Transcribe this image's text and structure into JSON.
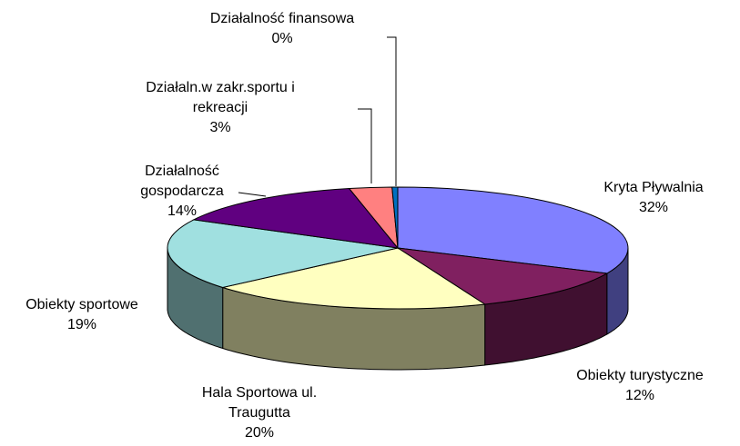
{
  "chart_data": {
    "type": "pie3d",
    "categories": [
      "Kryta Pływalnia",
      "Obiekty turystyczne",
      "Hala Sportowa ul. Traugutta",
      "Obiekty sportowe",
      "Działalność gospodarcza",
      "Działaln.w zakr.sportu i rekreacji",
      "Działalność finansowa"
    ],
    "values": [
      32,
      12,
      20,
      19,
      14,
      3,
      0.4
    ],
    "value_labels": [
      "32%",
      "12%",
      "20%",
      "19%",
      "14%",
      "3%",
      "0%"
    ],
    "colors": [
      "#8080ff",
      "#802060",
      "#ffffc0",
      "#a0e0e0",
      "#600080",
      "#ff8080",
      "#0070c0"
    ]
  }
}
